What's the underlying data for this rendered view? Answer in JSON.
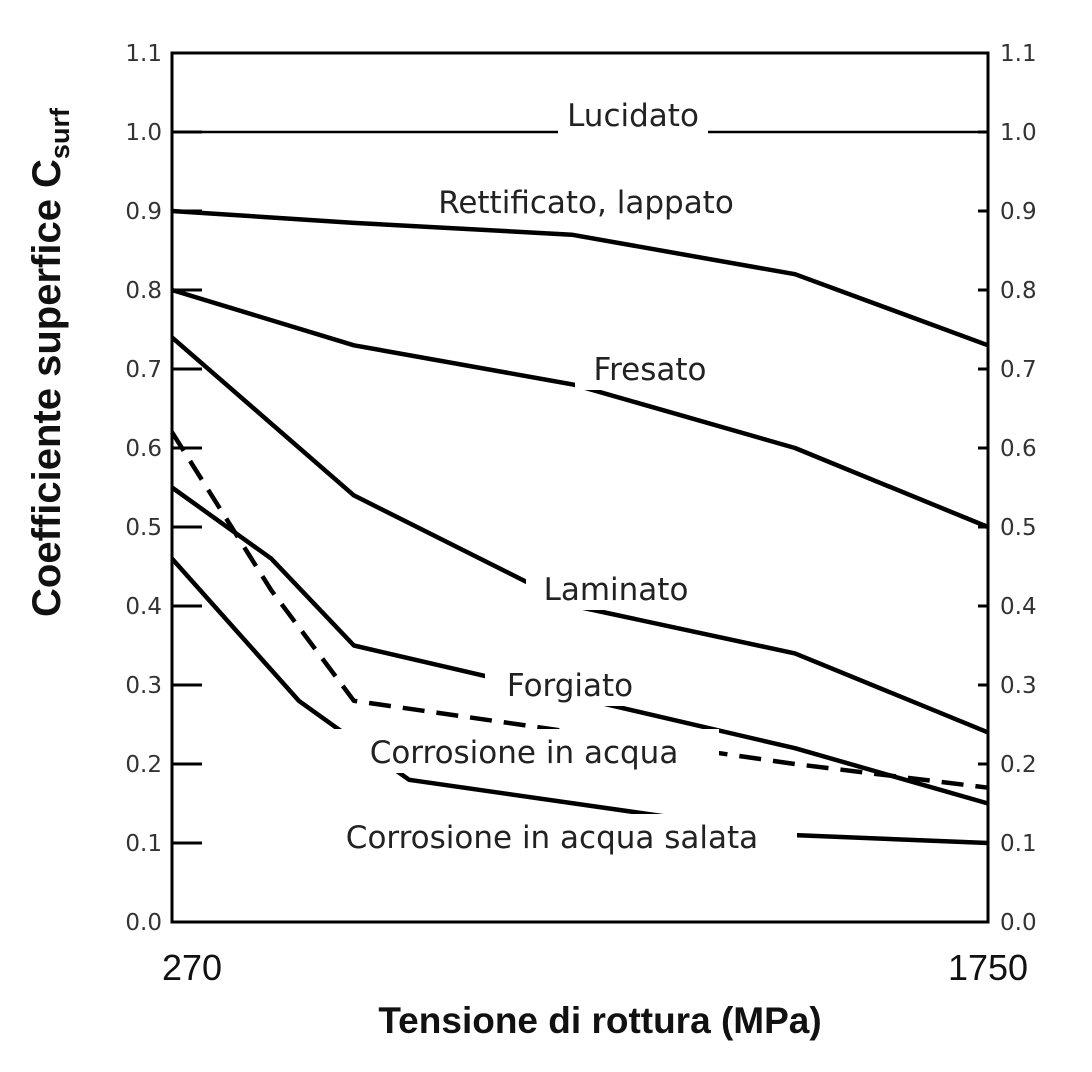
{
  "chart_data": {
    "type": "line",
    "title": "",
    "xlabel": "Tensione di rottura (MPa)",
    "ylabel_main": "Coefficiente superfice C",
    "ylabel_sub": "surf",
    "xlim": [
      270,
      1750
    ],
    "ylim": [
      0.0,
      1.1
    ],
    "x_tick_labels": [
      "270",
      "1750"
    ],
    "x_ticks": [
      270,
      1750
    ],
    "y_ticks": [
      0.0,
      0.1,
      0.2,
      0.3,
      0.4,
      0.5,
      0.6,
      0.7,
      0.8,
      0.9,
      1.0,
      1.1
    ],
    "y_tick_labels": [
      "0.0",
      "0.1",
      "0.2",
      "0.3",
      "0.4",
      "0.5",
      "0.6",
      "0.7",
      "0.8",
      "0.9",
      "1.0",
      "1.1"
    ],
    "grid": false,
    "series": [
      {
        "name": "Lucidato",
        "style": "solid",
        "x": [
          270,
          1750
        ],
        "y": [
          1.0,
          1.0
        ]
      },
      {
        "name": "Rettificato, lappato",
        "style": "solid",
        "x": [
          270,
          600,
          995,
          1400,
          1750
        ],
        "y": [
          0.9,
          0.885,
          0.87,
          0.82,
          0.73
        ]
      },
      {
        "name": "Fresato",
        "style": "solid",
        "x": [
          270,
          600,
          1000,
          1400,
          1750
        ],
        "y": [
          0.8,
          0.73,
          0.68,
          0.6,
          0.5
        ]
      },
      {
        "name": "Laminato",
        "style": "solid",
        "x": [
          270,
          600,
          1000,
          1400,
          1750
        ],
        "y": [
          0.74,
          0.54,
          0.4,
          0.34,
          0.24
        ]
      },
      {
        "name": "Forgiato",
        "style": "solid",
        "x": [
          270,
          450,
          600,
          1400,
          1750
        ],
        "y": [
          0.55,
          0.46,
          0.35,
          0.22,
          0.15
        ]
      },
      {
        "name": "Corrosione in acqua",
        "style": "dashed",
        "x": [
          270,
          450,
          600,
          1400,
          1750
        ],
        "y": [
          0.62,
          0.42,
          0.28,
          0.2,
          0.17
        ]
      },
      {
        "name": "Corrosione in acqua salata",
        "style": "solid",
        "x": [
          270,
          500,
          700,
          1400,
          1750
        ],
        "y": [
          0.46,
          0.28,
          0.18,
          0.11,
          0.1
        ]
      }
    ],
    "annotations": [
      {
        "text": "Lucidato",
        "series": "Lucidato"
      },
      {
        "text": "Rettificato, lappato",
        "series": "Rettificato, lappato"
      },
      {
        "text": "Fresato",
        "series": "Fresato"
      },
      {
        "text": "Laminato",
        "series": "Laminato"
      },
      {
        "text": "Forgiato",
        "series": "Forgiato"
      },
      {
        "text": "Corrosione in acqua",
        "series": "Corrosione in acqua"
      },
      {
        "text": "Corrosione in acqua salata",
        "series": "Corrosione in acqua salata"
      }
    ]
  }
}
